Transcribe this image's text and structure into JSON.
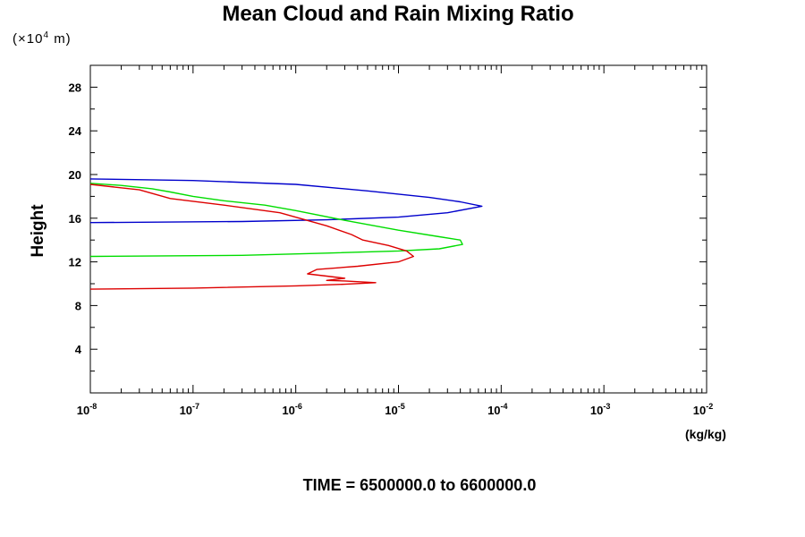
{
  "chart_data": {
    "type": "line",
    "title": "Mean Cloud and Rain Mixing Ratio",
    "scale_note": "(×10",
    "scale_note_exp": "4",
    "scale_note_unit": "m)",
    "ylabel": "Height",
    "xunit": "(kg/kg)",
    "footer": "TIME = 6500000.0 to 6600000.0",
    "x_scale": "log",
    "xlim": [
      1e-08,
      0.01
    ],
    "ylim": [
      0,
      30
    ],
    "x_ticks": [
      {
        "base": "10",
        "exp": "-8",
        "value": 1e-08
      },
      {
        "base": "10",
        "exp": "-7",
        "value": 1e-07
      },
      {
        "base": "10",
        "exp": "-6",
        "value": 1e-06
      },
      {
        "base": "10",
        "exp": "-5",
        "value": 1e-05
      },
      {
        "base": "10",
        "exp": "-4",
        "value": 0.0001
      },
      {
        "base": "10",
        "exp": "-3",
        "value": 0.001
      },
      {
        "base": "10",
        "exp": "-2",
        "value": 0.01
      }
    ],
    "y_ticks": [
      "4",
      "8",
      "12",
      "16",
      "20",
      "24",
      "28"
    ],
    "grid": false,
    "series": [
      {
        "color": "#0000cc",
        "points": [
          [
            1e-08,
            19.6
          ],
          [
            1e-07,
            19.45
          ],
          [
            1e-06,
            19.1
          ],
          [
            5e-06,
            18.5
          ],
          [
            2e-05,
            17.9
          ],
          [
            4e-05,
            17.5
          ],
          [
            6.5e-05,
            17.1
          ],
          [
            3e-05,
            16.5
          ],
          [
            1e-05,
            16.1
          ],
          [
            2e-06,
            15.85
          ],
          [
            3e-07,
            15.7
          ],
          [
            1e-08,
            15.6
          ]
        ]
      },
      {
        "color": "#00dd00",
        "points": [
          [
            1e-08,
            19.2
          ],
          [
            2e-08,
            19.0
          ],
          [
            4e-08,
            18.7
          ],
          [
            6e-08,
            18.4
          ],
          [
            1e-07,
            18.0
          ],
          [
            2e-07,
            17.6
          ],
          [
            5e-07,
            17.2
          ],
          [
            1e-06,
            16.7
          ],
          [
            3e-06,
            15.8
          ],
          [
            1e-05,
            14.9
          ],
          [
            2.5e-05,
            14.3
          ],
          [
            4e-05,
            14.0
          ],
          [
            4.2e-05,
            13.6
          ],
          [
            2.5e-05,
            13.2
          ],
          [
            1e-05,
            13.0
          ],
          [
            2e-06,
            12.8
          ],
          [
            3e-07,
            12.6
          ],
          [
            1e-08,
            12.5
          ]
        ]
      },
      {
        "color": "#dd0000",
        "points": [
          [
            1e-08,
            19.1
          ],
          [
            3e-08,
            18.6
          ],
          [
            6e-08,
            17.8
          ],
          [
            2e-07,
            17.2
          ],
          [
            7e-07,
            16.5
          ],
          [
            2e-06,
            15.3
          ],
          [
            3.5e-06,
            14.5
          ],
          [
            4.5e-06,
            14.0
          ],
          [
            8e-06,
            13.5
          ],
          [
            1.2e-05,
            13.0
          ],
          [
            1.4e-05,
            12.5
          ],
          [
            1e-05,
            12.0
          ],
          [
            4e-06,
            11.6
          ],
          [
            1.6e-06,
            11.3
          ],
          [
            1.3e-06,
            10.9
          ],
          [
            2e-06,
            10.7
          ],
          [
            3e-06,
            10.5
          ],
          [
            2e-06,
            10.3
          ],
          [
            3e-06,
            10.25
          ],
          [
            6e-06,
            10.1
          ],
          [
            3e-06,
            9.95
          ],
          [
            1e-06,
            9.8
          ],
          [
            1e-07,
            9.6
          ],
          [
            1e-08,
            9.5
          ]
        ]
      }
    ]
  }
}
